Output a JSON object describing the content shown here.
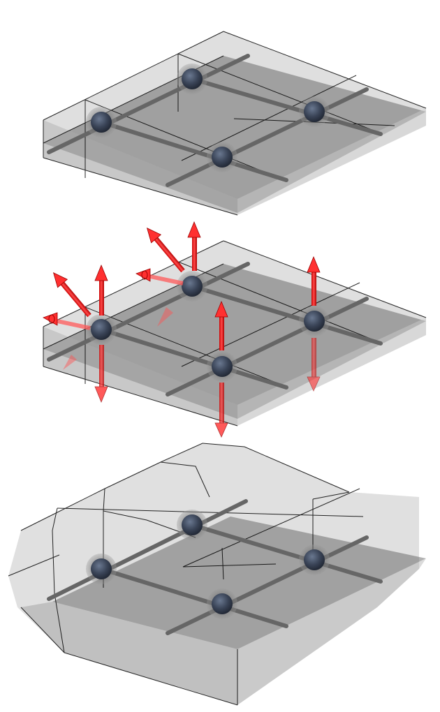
{
  "figure": {
    "panels": [
      {
        "id": "undeformed-lattice",
        "nodes": 4,
        "rods": 4,
        "forces": false
      },
      {
        "id": "loaded-lattice",
        "nodes": 4,
        "rods": 4,
        "forces": true
      },
      {
        "id": "deformed-lattice",
        "nodes": 4,
        "rods": 4,
        "forces": false
      }
    ],
    "colors": {
      "block_fill": "#8c8c8c",
      "mid_plane": "#555555",
      "edges": "#000000",
      "rod": "#5f5f5f",
      "node_outer": "#6b6b6b",
      "node_core": "#3a4457",
      "arrow": "#ff2a2a",
      "arrow_dark": "#b00000"
    },
    "icons": [
      "node-sphere-icon",
      "force-arrow-icon",
      "moment-arrow-icon"
    ]
  }
}
